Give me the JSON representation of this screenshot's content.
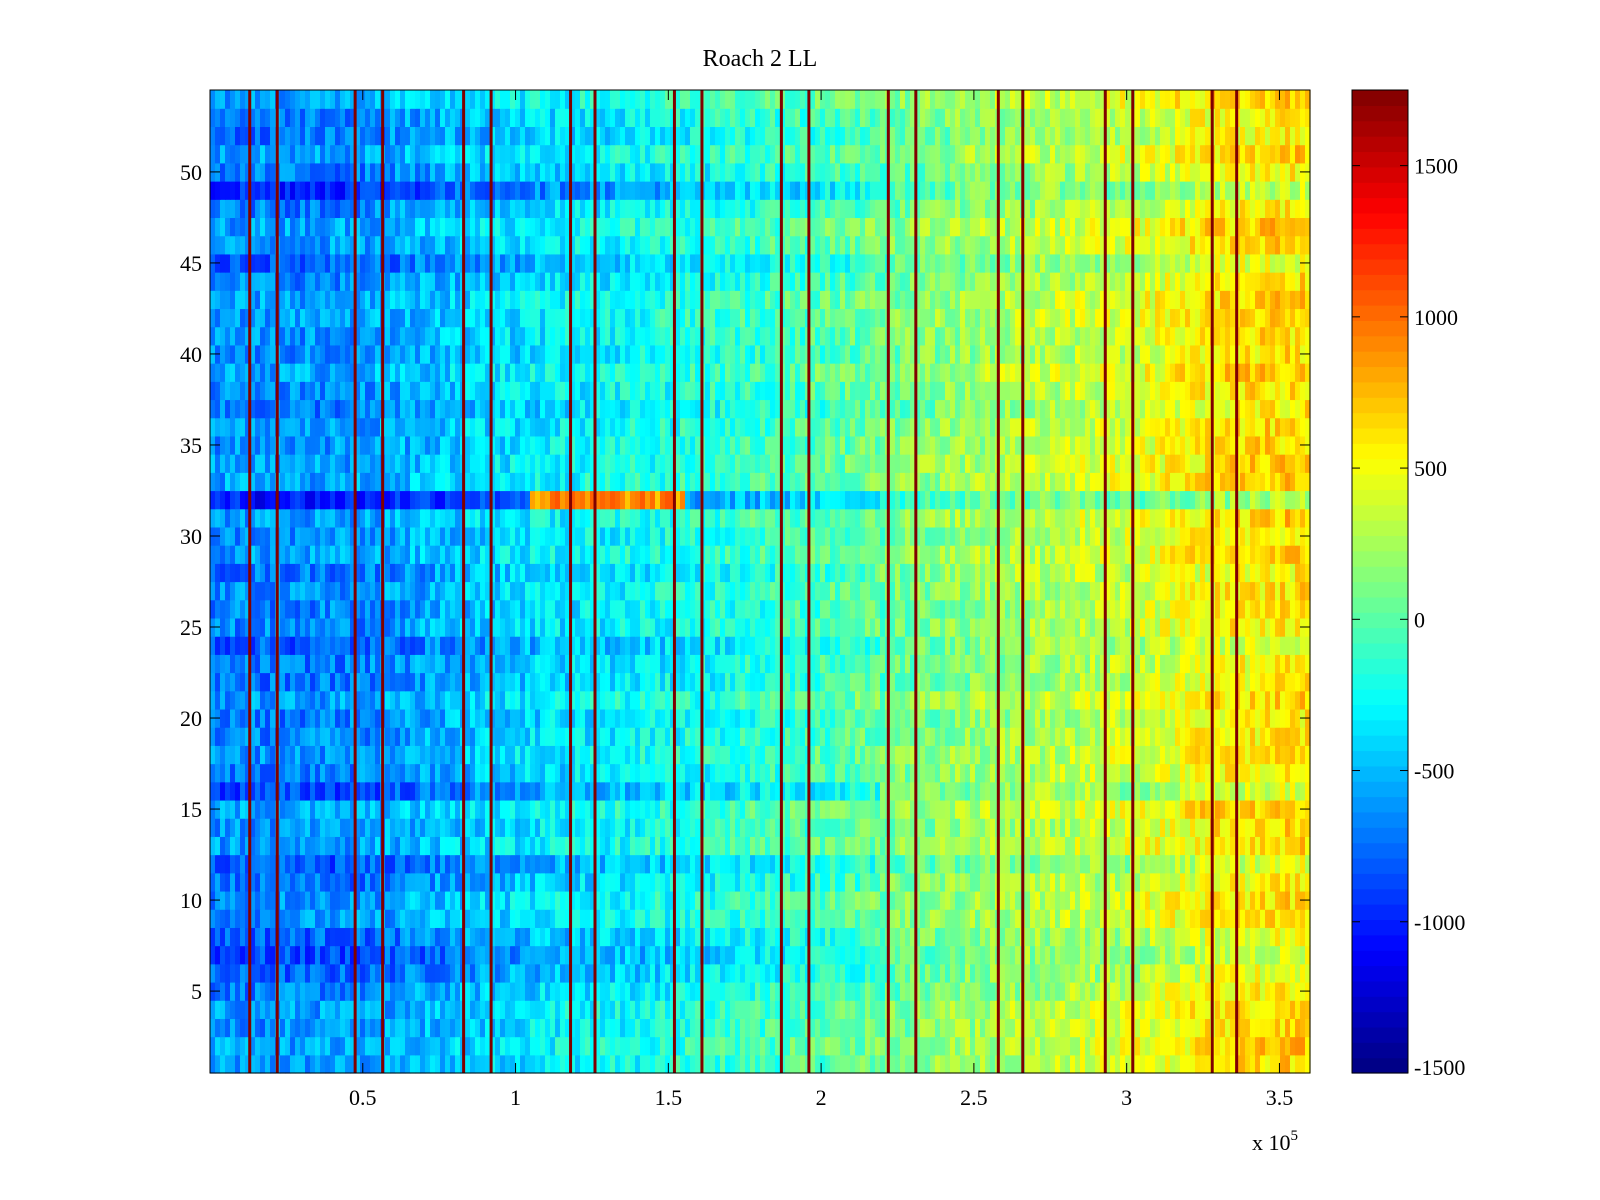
{
  "chart_data": {
    "type": "heatmap",
    "title": "Roach 2 LL",
    "xlabel": "",
    "ylabel": "",
    "x_multiplier": "x 10",
    "x_multiplier_exp": "5",
    "xlim": [
      0,
      3.6
    ],
    "ylim": [
      0.5,
      54.5
    ],
    "x_ticks": [
      0.5,
      1,
      1.5,
      2,
      2.5,
      3,
      3.5
    ],
    "x_tick_labels": [
      "0.5",
      "1",
      "1.5",
      "2",
      "2.5",
      "3",
      "3.5"
    ],
    "y_ticks": [
      5,
      10,
      15,
      20,
      25,
      30,
      35,
      40,
      45,
      50
    ],
    "y_tick_labels": [
      "5",
      "10",
      "15",
      "20",
      "25",
      "30",
      "35",
      "40",
      "45",
      "50"
    ],
    "rows": 54,
    "colorbar": {
      "colormap": "jet",
      "clim": [
        -1500,
        1750
      ],
      "ticks": [
        -1500,
        -1000,
        -500,
        0,
        500,
        1000,
        1500
      ],
      "tick_labels": [
        "-1500",
        "-1000",
        "-500",
        "0",
        "500",
        "1000",
        "1500"
      ]
    },
    "trend": {
      "x_knots": [
        0,
        0.5,
        1.0,
        1.5,
        2.0,
        2.5,
        3.0,
        3.3,
        3.6
      ],
      "values": [
        -650,
        -620,
        -380,
        -230,
        -30,
        200,
        380,
        570,
        650
      ]
    },
    "row_offsets": [
      {
        "row": 6,
        "offset": -180
      },
      {
        "row": 7,
        "offset": -250
      },
      {
        "row": 8,
        "offset": -120
      },
      {
        "row": 11,
        "offset": -160
      },
      {
        "row": 12,
        "offset": -120
      },
      {
        "row": 16,
        "offset": -300
      },
      {
        "row": 17,
        "offset": -120
      },
      {
        "row": 24,
        "offset": -150
      },
      {
        "row": 28,
        "offset": -150
      },
      {
        "row": 32,
        "offset": -350
      },
      {
        "row": 45,
        "offset": -130
      },
      {
        "row": 49,
        "offset": -280
      }
    ],
    "row_32_hot_segment": {
      "x_range": [
        1.05,
        1.55
      ],
      "value": 950
    },
    "spike_value": 1750,
    "spike_lines_x": [
      0.13,
      0.22,
      0.475,
      0.565,
      0.83,
      0.92,
      1.18,
      1.26,
      1.52,
      1.61,
      1.87,
      1.96,
      2.22,
      2.31,
      2.58,
      2.66,
      2.93,
      3.02,
      3.28,
      3.36
    ]
  }
}
